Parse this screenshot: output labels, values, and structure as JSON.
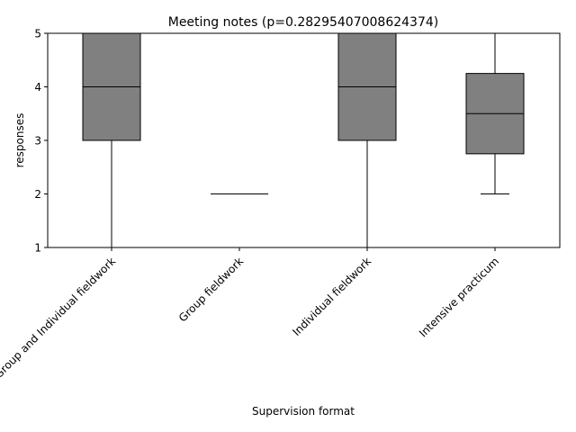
{
  "chart_data": {
    "type": "box",
    "title": "Meeting notes (p=0.28295407008624374)",
    "xlabel": "Supervision format",
    "ylabel": "responses",
    "ylim": [
      1,
      5
    ],
    "yticks": [
      "1",
      "2",
      "3",
      "4",
      "5"
    ],
    "grid": false,
    "categories": [
      "Group and Individual fieldwork",
      "Group fieldwork",
      "Individual fieldwork",
      "Intensive practicum"
    ],
    "boxes": [
      {
        "whisker_low": 1,
        "q1": 3,
        "median": 4,
        "q3": 5,
        "whisker_high": 5
      },
      {
        "whisker_low": 2,
        "q1": 2,
        "median": 2,
        "q3": 2,
        "whisker_high": 2
      },
      {
        "whisker_low": 1,
        "q1": 3,
        "median": 4,
        "q3": 5,
        "whisker_high": 5
      },
      {
        "whisker_low": 2,
        "q1": 2.75,
        "median": 3.5,
        "q3": 4.25,
        "whisker_high": 5
      }
    ],
    "box_color": "#808080",
    "line_color": "#000000"
  }
}
